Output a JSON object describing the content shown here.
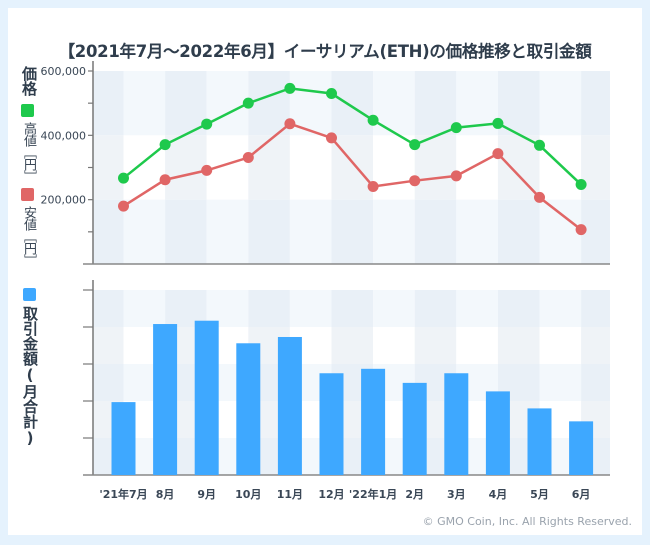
{
  "title": "【2021年7月〜2022年6月】イーサリアム(ETH)の価格推移と取引金額",
  "copyright": "© GMO Coin, Inc. All Rights Reserved.",
  "colors": {
    "high": "#1ec94c",
    "low": "#e06666",
    "volume": "#3ea8ff",
    "text": "#2f3d4c",
    "page_bg": "#e5f2fd"
  },
  "legend": {
    "price_label": "価格",
    "high_label": "高値［円］",
    "low_label": "安値［円］",
    "volume_label": "取引金額(月合計)"
  },
  "chart_data": [
    {
      "type": "line",
      "title": "価格",
      "categories": [
        "'21年7月",
        "8月",
        "9月",
        "10月",
        "11月",
        "12月",
        "'22年1月",
        "2月",
        "3月",
        "4月",
        "5月",
        "6月"
      ],
      "series": [
        {
          "name": "高値［円］",
          "values": [
            267000,
            371000,
            435000,
            500000,
            546000,
            530000,
            447000,
            371000,
            424000,
            437000,
            369000,
            247000
          ]
        },
        {
          "name": "安値［円］",
          "values": [
            180000,
            262000,
            291000,
            331000,
            436000,
            392000,
            241000,
            259000,
            274000,
            343000,
            207000,
            107000
          ]
        }
      ],
      "y_ticks": [
        200000,
        400000,
        600000
      ],
      "y_tick_labels": [
        "200,000",
        "400,000",
        "600,000"
      ],
      "ylim": [
        0,
        600000
      ],
      "ylabel": "価格",
      "grid": true,
      "legend": "left"
    },
    {
      "type": "bar",
      "title": "取引金額(月合計)",
      "categories": [
        "'21年7月",
        "8月",
        "9月",
        "10月",
        "11月",
        "12月",
        "'22年1月",
        "2月",
        "3月",
        "4月",
        "5月",
        "6月"
      ],
      "series": [
        {
          "name": "取引金額(月合計)",
          "values": [
            1.97,
            4.08,
            4.17,
            3.56,
            3.73,
            2.75,
            2.87,
            2.49,
            2.75,
            2.26,
            1.8,
            1.45
          ]
        }
      ],
      "y_ticks": [
        1,
        2,
        3,
        4,
        5
      ],
      "y_tick_labels": [],
      "ylim": [
        0,
        5.1
      ],
      "ylabel": "取引金額(月合計)",
      "grid": true,
      "legend": "left"
    }
  ]
}
